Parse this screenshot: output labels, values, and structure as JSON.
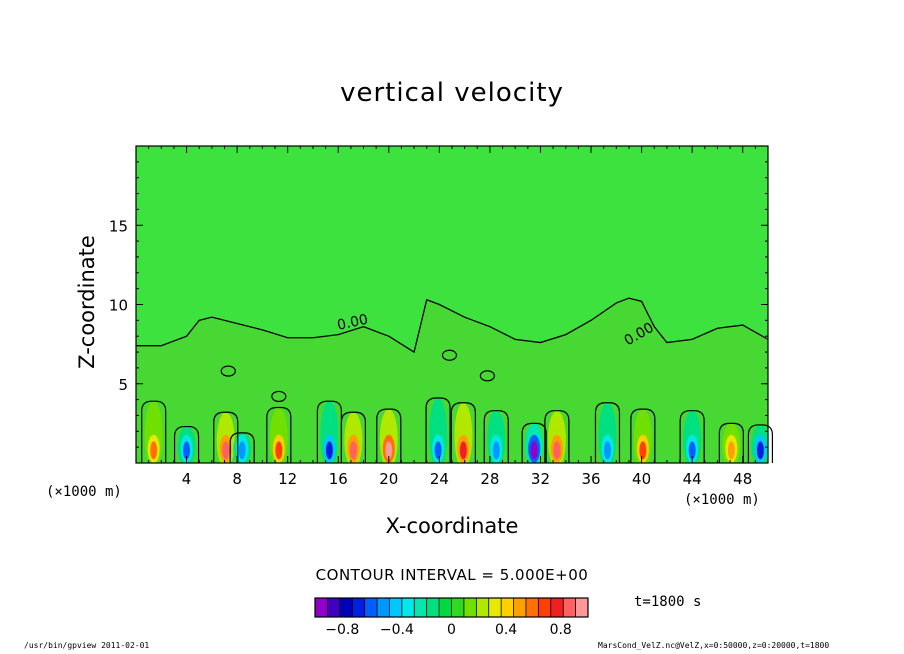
{
  "chart_data": {
    "type": "contour",
    "title": "vertical velocity",
    "xlabel": "X-coordinate",
    "ylabel": "Z-coordinate",
    "x_unit": "(×1000 m)",
    "y_unit": "(×1000 m)",
    "xlim": [
      0,
      50
    ],
    "ylim": [
      0,
      20
    ],
    "x_ticks": [
      4,
      8,
      12,
      16,
      20,
      24,
      28,
      32,
      36,
      40,
      44,
      48
    ],
    "y_ticks": [
      5,
      10,
      15
    ],
    "contour_interval": "CONTOUR INTERVAL = 5.000E+00",
    "contour_label": "0.00",
    "time_label": "t=1800 s",
    "colorbar": {
      "labels": [
        "−0.8",
        "−0.4",
        "0",
        "0.4",
        "0.8"
      ],
      "label_values": [
        -0.8,
        -0.4,
        0,
        0.4,
        0.8
      ],
      "range": [
        -1.0,
        1.0
      ],
      "colors": [
        "#9000c8",
        "#4000c0",
        "#0000b8",
        "#0020e0",
        "#0060ff",
        "#0098ff",
        "#00c8ff",
        "#00e8e8",
        "#00e8b0",
        "#00e080",
        "#00d840",
        "#30d820",
        "#70e000",
        "#b0e800",
        "#e8e800",
        "#ffd000",
        "#ffa000",
        "#ff7000",
        "#ff4000",
        "#f02020",
        "#ff6060",
        "#ff9898"
      ]
    },
    "zero_contour_x": [
      0,
      2,
      4,
      5,
      6,
      8,
      10,
      12,
      14,
      16,
      18,
      20,
      22,
      23,
      24,
      26,
      28,
      30,
      32,
      34,
      36,
      38,
      39,
      40,
      41,
      42,
      44,
      46,
      48,
      50
    ],
    "zero_contour_z": [
      7.4,
      7.4,
      8.0,
      9.0,
      9.2,
      8.8,
      8.4,
      7.9,
      7.9,
      8.1,
      8.6,
      8.0,
      7.0,
      10.3,
      10.0,
      9.2,
      8.6,
      7.8,
      7.6,
      8.1,
      9.0,
      10.1,
      10.4,
      10.2,
      8.6,
      7.6,
      7.8,
      8.5,
      8.7,
      7.8
    ],
    "cell_centers_x": [
      1.4,
      4.0,
      7.1,
      8.4,
      11.3,
      15.3,
      17.2,
      20.0,
      23.9,
      25.9,
      28.5,
      31.5,
      33.3,
      37.3,
      40.1,
      44.0,
      47.1,
      49.4
    ],
    "cell_tops_z": [
      3.9,
      2.3,
      3.2,
      1.9,
      3.5,
      3.9,
      3.2,
      3.4,
      4.1,
      3.8,
      3.3,
      2.5,
      3.3,
      3.8,
      3.4,
      3.3,
      2.5,
      2.4
    ],
    "cell_amplitudes": [
      0.6,
      -0.6,
      0.9,
      -0.5,
      0.7,
      -0.7,
      0.9,
      1.0,
      -0.6,
      0.8,
      -0.5,
      -1.0,
      0.9,
      -0.5,
      0.7,
      -0.6,
      0.5,
      -0.7
    ]
  },
  "footer": {
    "left": "/usr/bin/gpview  2011-02-01",
    "right": "MarsCond_VelZ.nc@VelZ,x=0:50000,z=0:20000,t=1800"
  }
}
